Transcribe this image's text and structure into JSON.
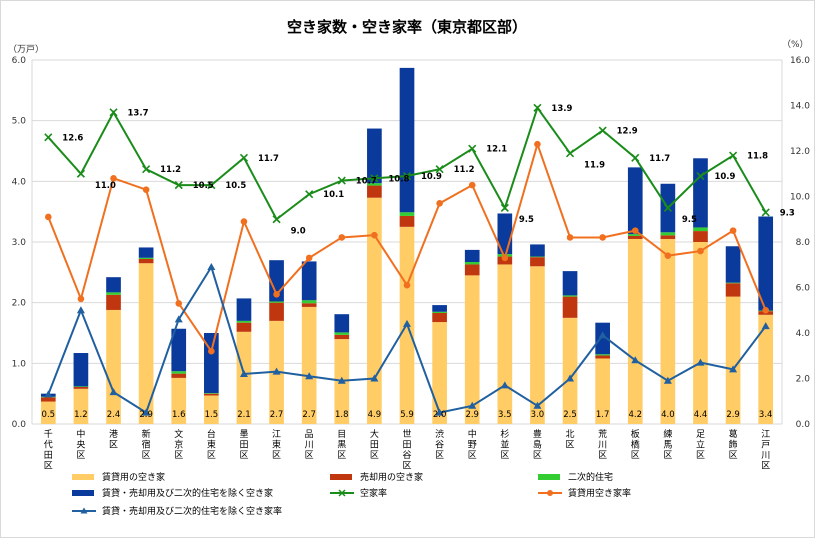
{
  "chart_data": {
    "type": "bar",
    "title": "空き家数・空き家率（東京都区部）",
    "left_unit": "（万戸）",
    "right_unit": "（%）",
    "left_ticks": [
      "0.0",
      "1.0",
      "2.0",
      "3.0",
      "4.0",
      "5.0",
      "6.0"
    ],
    "right_ticks": [
      "0.0",
      "2.0",
      "4.0",
      "6.0",
      "8.0",
      "10.0",
      "12.0",
      "14.0",
      "16.0"
    ],
    "ylim_left": [
      0,
      6
    ],
    "ylim_right": [
      0,
      16
    ],
    "grid": true,
    "legend_position": "bottom",
    "categories": [
      "千代田区",
      "中央区",
      "港区",
      "新宿区",
      "文京区",
      "台東区",
      "墨田区",
      "江東区",
      "品川区",
      "目黒区",
      "大田区",
      "世田谷区",
      "渋谷区",
      "中野区",
      "杉並区",
      "豊島区",
      "北区",
      "荒川区",
      "板橋区",
      "練馬区",
      "足立区",
      "葛飾区",
      "江戸川区"
    ],
    "totals": [
      "0.5",
      "1.2",
      "2.4",
      "2.9",
      "1.6",
      "1.5",
      "2.1",
      "2.7",
      "2.7",
      "1.8",
      "4.9",
      "5.9",
      "2.0",
      "2.9",
      "3.5",
      "3.0",
      "2.5",
      "1.7",
      "4.2",
      "4.0",
      "4.4",
      "2.9",
      "3.4"
    ],
    "series": [
      {
        "name": "賃貸用の空き家",
        "color": "#ffcc66",
        "axis": "left",
        "kind": "bar",
        "values": [
          0.37,
          0.58,
          1.88,
          2.65,
          0.76,
          0.47,
          1.52,
          1.7,
          1.93,
          1.4,
          3.73,
          3.25,
          1.68,
          2.45,
          2.63,
          2.6,
          1.75,
          1.08,
          3.05,
          3.05,
          3.0,
          2.1,
          1.8
        ]
      },
      {
        "name": "売却用の空き家",
        "color": "#c0360e",
        "axis": "left",
        "kind": "bar",
        "values": [
          0.07,
          0.03,
          0.25,
          0.07,
          0.07,
          0.03,
          0.15,
          0.3,
          0.06,
          0.07,
          0.2,
          0.18,
          0.15,
          0.18,
          0.13,
          0.15,
          0.35,
          0.05,
          0.05,
          0.06,
          0.18,
          0.22,
          0.06
        ]
      },
      {
        "name": "二次的住宅",
        "color": "#33cc33",
        "axis": "left",
        "kind": "bar",
        "values": [
          0.01,
          0.01,
          0.04,
          0.02,
          0.04,
          0.01,
          0.03,
          0.02,
          0.05,
          0.04,
          0.04,
          0.06,
          0.02,
          0.04,
          0.04,
          0.01,
          0.02,
          0.02,
          0.03,
          0.05,
          0.06,
          0.01,
          0.01
        ]
      },
      {
        "name": "賃貸・売却用及び二次的住宅を除く空き家",
        "color": "#0a3a9c",
        "axis": "left",
        "kind": "bar",
        "values": [
          0.05,
          0.55,
          0.25,
          0.17,
          0.7,
          0.99,
          0.37,
          0.68,
          0.64,
          0.3,
          0.9,
          2.38,
          0.11,
          0.2,
          0.67,
          0.2,
          0.4,
          0.52,
          1.1,
          0.8,
          1.14,
          0.6,
          1.55
        ]
      },
      {
        "name": "空家率",
        "color": "#1a8c1a",
        "axis": "right",
        "kind": "line",
        "marker": "x",
        "values": [
          12.6,
          11.0,
          13.7,
          11.2,
          10.5,
          10.5,
          11.7,
          9.0,
          10.1,
          10.7,
          10.8,
          10.9,
          11.2,
          12.1,
          9.5,
          13.9,
          11.9,
          12.9,
          11.7,
          9.5,
          10.9,
          11.8,
          9.3
        ]
      },
      {
        "name": "賃貸用空き家率",
        "color": "#f07020",
        "axis": "right",
        "kind": "line",
        "marker": "circle",
        "values": [
          9.1,
          5.5,
          10.8,
          10.3,
          5.3,
          3.2,
          8.9,
          5.7,
          7.3,
          8.2,
          8.3,
          6.1,
          9.7,
          10.5,
          7.3,
          12.3,
          8.2,
          8.2,
          8.5,
          7.4,
          7.6,
          8.5,
          5.0
        ]
      },
      {
        "name": "賃貸・売却用及び二次的住宅を除く空き家率",
        "color": "#2060a0",
        "axis": "right",
        "kind": "line",
        "marker": "triangle",
        "values": [
          1.3,
          5.0,
          1.4,
          0.5,
          4.6,
          6.9,
          2.2,
          2.3,
          2.1,
          1.9,
          2.0,
          4.4,
          0.5,
          0.8,
          1.7,
          0.8,
          2.0,
          3.9,
          2.8,
          1.9,
          2.7,
          2.4,
          4.3
        ]
      }
    ],
    "line_labels": [
      "12.6",
      "11.0",
      "13.7",
      "11.2",
      "10.5",
      "10.5",
      "11.7",
      "9.0",
      "10.1",
      "10.7",
      "10.8",
      "10.9",
      "11.2",
      "12.1",
      "9.5",
      "13.9",
      "11.9",
      "12.9",
      "11.7",
      "9.5",
      "10.9",
      "11.8",
      "9.3"
    ]
  }
}
